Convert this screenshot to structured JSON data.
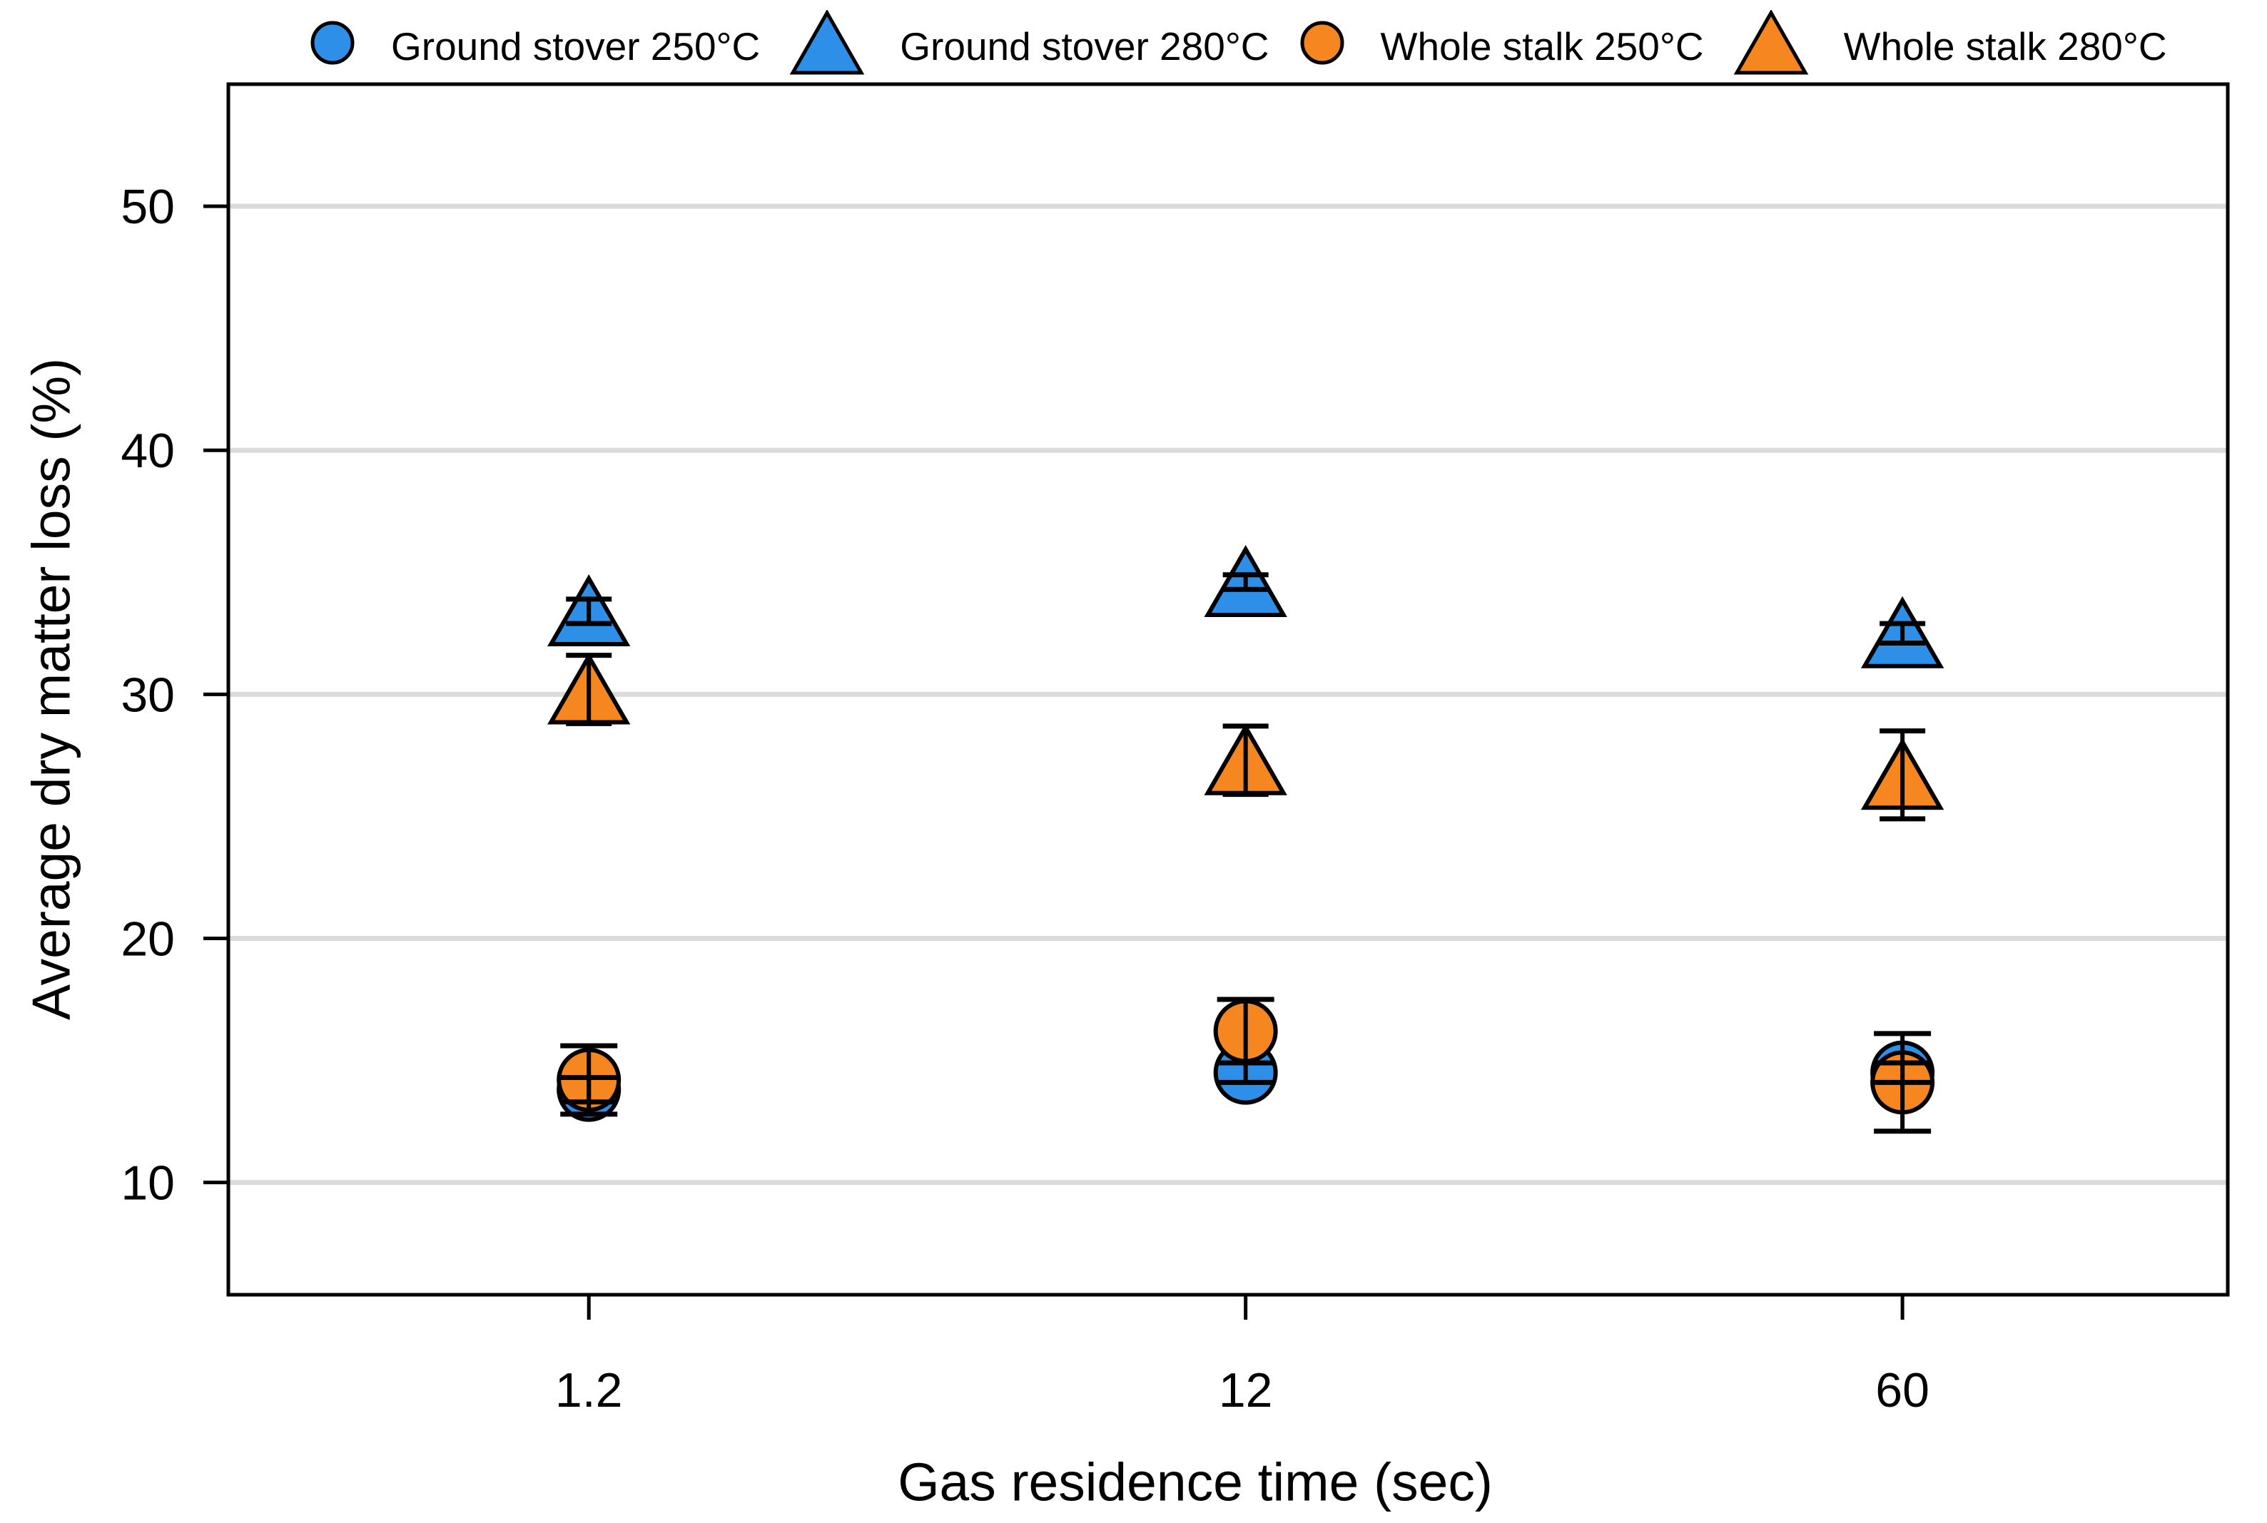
{
  "colors": {
    "blue": "#2E8FE8",
    "orange": "#F6861F",
    "grid": "#DBDBDB",
    "frame": "#000000",
    "background": "#FFFFFF"
  },
  "chart_data": {
    "type": "scatter",
    "title": "",
    "xlabel": "Gas residence time (sec)",
    "ylabel": "Average dry matter loss (%)",
    "categories": [
      "1.2",
      "12",
      "60"
    ],
    "y_ticks": [
      10,
      20,
      30,
      40,
      50
    ],
    "ylim": [
      5.4,
      55
    ],
    "grid": "horizontal-only",
    "legend_position": "top",
    "error_bars": true,
    "series": [
      {
        "name": "Ground stover 250°C",
        "marker": "circle",
        "color": "#2E8FE8",
        "values": [
          13.8,
          14.5,
          14.5
        ],
        "errors": [
          0.5,
          0.4,
          0.4
        ]
      },
      {
        "name": "Ground stover 280°C",
        "marker": "triangle",
        "color": "#2E8FE8",
        "values": [
          33.4,
          34.6,
          32.5
        ],
        "errors": [
          0.5,
          0.3,
          0.4
        ]
      },
      {
        "name": "Whole stalk 250°C",
        "marker": "circle",
        "color": "#F6861F",
        "values": [
          14.2,
          16.2,
          14.1
        ],
        "errors": [
          1.4,
          1.3,
          2.0
        ]
      },
      {
        "name": "Whole stalk 280°C",
        "marker": "triangle",
        "color": "#F6861F",
        "values": [
          30.2,
          27.3,
          26.7
        ],
        "errors": [
          1.4,
          1.4,
          1.8
        ]
      }
    ]
  }
}
